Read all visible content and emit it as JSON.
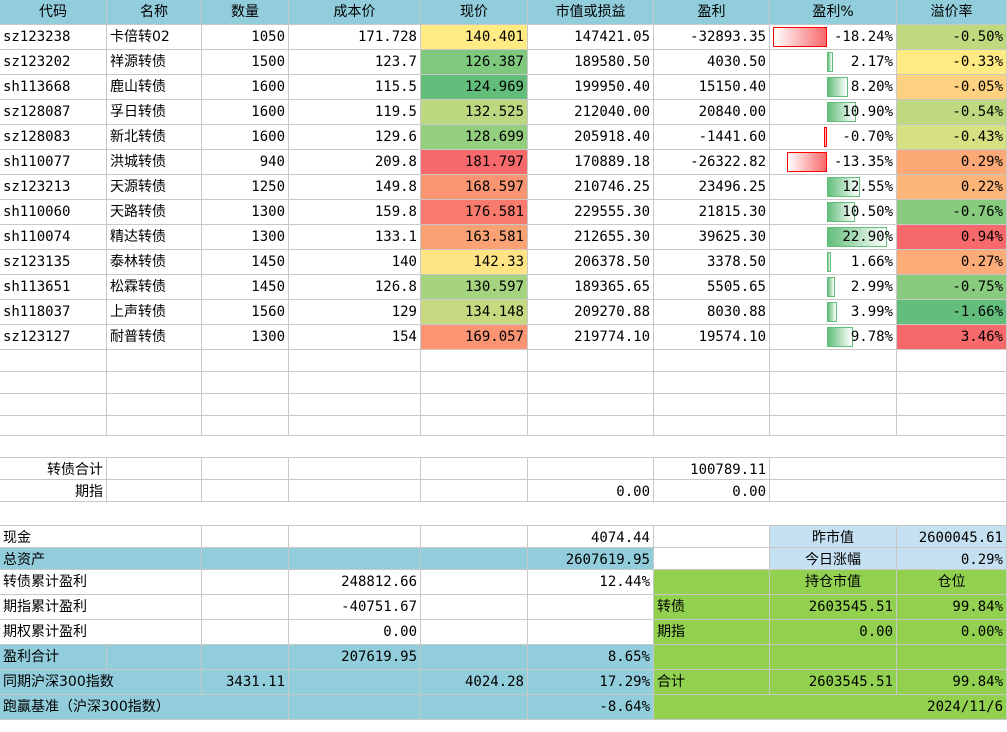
{
  "headers": [
    "代码",
    "名称",
    "数量",
    "成本价",
    "现价",
    "市值或损益",
    "盈利",
    "盈利%",
    "溢价率"
  ],
  "rows": [
    {
      "code": "sz123238",
      "name": "卡倍转02",
      "qty": "1050",
      "cost": "171.728",
      "price": "140.401",
      "value": "147421.05",
      "profit": "-32893.35",
      "pct": "-18.24%",
      "pct_val": -18.24,
      "prem": "-0.50%",
      "price_color": "#ffeb84",
      "prem_color": "#bfd97f"
    },
    {
      "code": "sz123202",
      "name": "祥源转债",
      "qty": "1500",
      "cost": "123.7",
      "price": "126.387",
      "value": "189580.50",
      "profit": "4030.50",
      "pct": "2.17%",
      "pct_val": 2.17,
      "prem": "-0.33%",
      "price_color": "#7fc97e",
      "prem_color": "#ffeb84"
    },
    {
      "code": "sh113668",
      "name": "鹿山转债",
      "qty": "1600",
      "cost": "115.5",
      "price": "124.969",
      "value": "199950.40",
      "profit": "15150.40",
      "pct": "8.20%",
      "pct_val": 8.2,
      "prem": "-0.05%",
      "price_color": "#63be7b",
      "prem_color": "#fdd17f"
    },
    {
      "code": "sz128087",
      "name": "孚日转债",
      "qty": "1600",
      "cost": "119.5",
      "price": "132.525",
      "value": "212040.00",
      "profit": "20840.00",
      "pct": "10.90%",
      "pct_val": 10.9,
      "prem": "-0.54%",
      "price_color": "#bbd880",
      "prem_color": "#bed97f"
    },
    {
      "code": "sz128083",
      "name": "新北转债",
      "qty": "1600",
      "cost": "129.6",
      "price": "128.699",
      "value": "205918.40",
      "profit": "-1441.60",
      "pct": "-0.70%",
      "pct_val": -0.7,
      "prem": "-0.43%",
      "price_color": "#93cf7e",
      "prem_color": "#d6e181"
    },
    {
      "code": "sh110077",
      "name": "洪城转债",
      "qty": "940",
      "cost": "209.8",
      "price": "181.797",
      "value": "170889.18",
      "profit": "-26322.82",
      "pct": "-13.35%",
      "pct_val": -13.35,
      "prem": "0.29%",
      "price_color": "#f8696b",
      "prem_color": "#fca877"
    },
    {
      "code": "sz123213",
      "name": "天源转债",
      "qty": "1250",
      "cost": "149.8",
      "price": "168.597",
      "value": "210746.25",
      "profit": "23496.25",
      "pct": "12.55%",
      "pct_val": 12.55,
      "prem": "0.22%",
      "price_color": "#fa9572",
      "prem_color": "#fcb479"
    },
    {
      "code": "sh110060",
      "name": "天路转债",
      "qty": "1300",
      "cost": "159.8",
      "price": "176.581",
      "value": "229555.30",
      "profit": "21815.30",
      "pct": "10.50%",
      "pct_val": 10.5,
      "prem": "-0.76%",
      "price_color": "#f97b6e",
      "prem_color": "#88cb7e"
    },
    {
      "code": "sh110074",
      "name": "精达转债",
      "qty": "1300",
      "cost": "133.1",
      "price": "163.581",
      "value": "212655.30",
      "profit": "39625.30",
      "pct": "22.90%",
      "pct_val": 22.9,
      "prem": "0.94%",
      "price_color": "#fba275",
      "prem_color": "#f8696b"
    },
    {
      "code": "sz123135",
      "name": "泰林转债",
      "qty": "1450",
      "cost": "140",
      "price": "142.33",
      "value": "206378.50",
      "profit": "3378.50",
      "pct": "1.66%",
      "pct_val": 1.66,
      "prem": "0.27%",
      "price_color": "#ffe483",
      "prem_color": "#fcac78"
    },
    {
      "code": "sh113651",
      "name": "松霖转债",
      "qty": "1450",
      "cost": "126.8",
      "price": "130.597",
      "value": "189365.65",
      "profit": "5505.65",
      "pct": "2.99%",
      "pct_val": 2.99,
      "prem": "-0.75%",
      "price_color": "#a6d37f",
      "prem_color": "#89cb7e"
    },
    {
      "code": "sh118037",
      "name": "上声转债",
      "qty": "1560",
      "cost": "129",
      "price": "134.148",
      "value": "209270.88",
      "profit": "8030.88",
      "pct": "3.99%",
      "pct_val": 3.99,
      "prem": "-1.66%",
      "price_color": "#c5da80",
      "prem_color": "#63be7b"
    },
    {
      "code": "sz123127",
      "name": "耐普转债",
      "qty": "1300",
      "cost": "154",
      "price": "169.057",
      "value": "219774.10",
      "profit": "19574.10",
      "pct": "9.78%",
      "pct_val": 9.78,
      "prem": "3.46%",
      "price_color": "#fa9472",
      "prem_color": "#f8696b"
    }
  ],
  "summary": {
    "cb_total_label": "转债合计",
    "cb_total_profit": "100789.11",
    "futures_label": "期指",
    "futures_value": "0.00",
    "futures_profit": "0.00",
    "cash_label": "现金",
    "cash_value": "4074.44",
    "total_assets_label": "总资产",
    "total_assets_value": "2607619.95",
    "prev_value_label": "昨市值",
    "prev_value": "2600045.61",
    "today_change_label": "今日涨幅",
    "today_change": "0.29%",
    "cb_cum_label": "转债累计盈利",
    "cb_cum_value": "248812.66",
    "cb_cum_pct": "12.44%",
    "fut_cum_label": "期指累计盈利",
    "fut_cum_value": "-40751.67",
    "opt_cum_label": "期权累计盈利",
    "opt_cum_value": "0.00",
    "profit_total_label": "盈利合计",
    "profit_total_value": "207619.95",
    "profit_total_pct": "8.65%",
    "hs300_label": "同期沪深300指数",
    "hs300_base": "3431.11",
    "hs300_now": "4024.28",
    "hs300_pct": "17.29%",
    "beat_label": "跑赢基准（沪深300指数）",
    "beat_pct": "-8.64%",
    "pos_value_header": "持仓市值",
    "pos_header": "仓位",
    "pos_cb_label": "转债",
    "pos_cb_value": "2603545.51",
    "pos_cb_pct": "99.84%",
    "pos_fut_label": "期指",
    "pos_fut_value": "0.00",
    "pos_fut_pct": "0.00%",
    "pos_total_label": "合计",
    "pos_total_value": "2603545.51",
    "pos_total_pct": "99.84%",
    "date": "2024/11/6"
  },
  "colors": {
    "header_blue": "#92cddc",
    "light_blue": "#c5e0f0",
    "green": "#92d050"
  }
}
